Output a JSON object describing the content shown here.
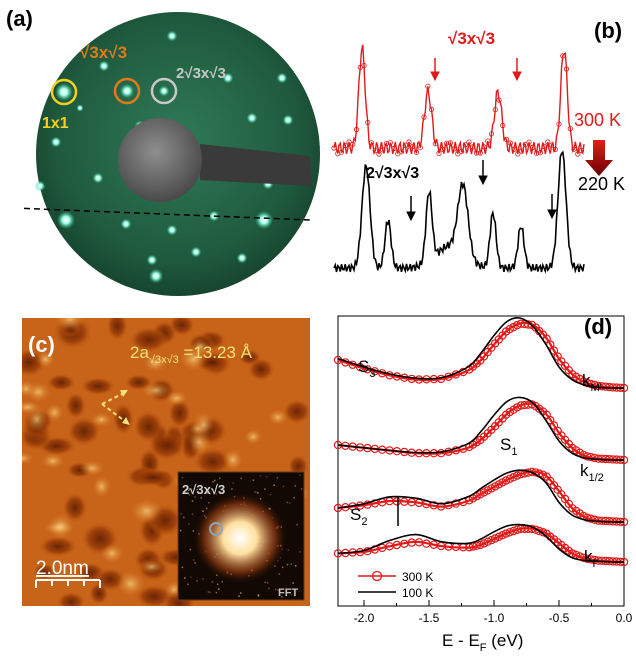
{
  "panel_a": {
    "label": "(a)",
    "spot_labels": [
      "1x1",
      "√3x√3",
      "2√3x√3"
    ],
    "colors": {
      "c1x1": "#f2d21f",
      "root3": "#e07a1a",
      "two_root3": "#c8c8c8",
      "screen": "#1f5a3e"
    }
  },
  "panel_b": {
    "label": "(b)",
    "red_label": "√3x√3",
    "black_label": "2√3x√3",
    "temp_high": "300 K",
    "temp_low": "220 K",
    "colors": {
      "hot": "#e11a1a",
      "cold": "#000000"
    }
  },
  "panel_c": {
    "label": "(c)",
    "lattice_prefix": "2a",
    "lattice_sub": "√3x√3",
    "lattice_value": " =13.23 Å",
    "scalebar": "2.0nm",
    "inset_title": "2√3x√3",
    "inset_label": "FFT"
  },
  "panel_d": {
    "label": "(d)",
    "xlabel_main": "E - E",
    "xlabel_sub": "F",
    "xlabel_unit": " (eV)",
    "peaks": [
      {
        "main": "S",
        "sub": "3"
      },
      {
        "main": "S",
        "sub": "1"
      },
      {
        "main": "S",
        "sub": "2"
      }
    ],
    "curve_labels": [
      {
        "main": "k",
        "sub": "M'"
      },
      {
        "main": "k",
        "sub": "1/2"
      },
      {
        "main": "k",
        "sub": "Γ"
      }
    ],
    "legend": [
      "300 K",
      "100 K"
    ],
    "colors": {
      "t300": "#e11a1a",
      "t100": "#000000"
    }
  },
  "chart_data": [
    {
      "type": "line",
      "panel": "(d)",
      "xlabel": "E - EF (eV)",
      "ylabel": "",
      "xlim": [
        -2.2,
        0.0
      ],
      "xticks": [
        "-2.0",
        "-1.5",
        "-1.0",
        "-0.5",
        "0.0"
      ],
      "x": [
        -2.2,
        -2.0,
        -1.8,
        -1.6,
        -1.4,
        -1.2,
        -1.1,
        -1.0,
        -0.9,
        -0.8,
        -0.7,
        -0.6,
        -0.5,
        -0.4,
        -0.3,
        -0.2,
        -0.1,
        0.0
      ],
      "series": [
        {
          "name": "300 K",
          "curve": "kM'",
          "values": [
            0.4,
            0.28,
            0.18,
            0.12,
            0.13,
            0.25,
            0.4,
            0.62,
            0.82,
            0.92,
            0.9,
            0.72,
            0.42,
            0.2,
            0.08,
            0.03,
            0.01,
            0.0
          ]
        },
        {
          "name": "100 K",
          "curve": "kM'",
          "values": [
            0.42,
            0.3,
            0.2,
            0.14,
            0.15,
            0.3,
            0.5,
            0.75,
            0.95,
            1.0,
            0.88,
            0.62,
            0.3,
            0.12,
            0.04,
            0.01,
            0.0,
            0.0
          ]
        },
        {
          "name": "300 K",
          "curve": "middle",
          "values": [
            0.22,
            0.18,
            0.14,
            0.1,
            0.1,
            0.18,
            0.3,
            0.48,
            0.68,
            0.8,
            0.82,
            0.68,
            0.4,
            0.18,
            0.06,
            0.02,
            0.01,
            0.0
          ]
        },
        {
          "name": "100 K",
          "curve": "middle",
          "values": [
            0.22,
            0.18,
            0.14,
            0.11,
            0.12,
            0.24,
            0.42,
            0.66,
            0.86,
            0.92,
            0.84,
            0.58,
            0.28,
            0.1,
            0.03,
            0.01,
            0.0,
            0.0
          ]
        },
        {
          "name": "300 K",
          "curve": "k1/2",
          "values": [
            0.2,
            0.24,
            0.3,
            0.28,
            0.22,
            0.3,
            0.4,
            0.5,
            0.6,
            0.68,
            0.72,
            0.66,
            0.44,
            0.2,
            0.07,
            0.02,
            0.01,
            0.0
          ]
        },
        {
          "name": "100 K",
          "curve": "k1/2",
          "values": [
            0.2,
            0.26,
            0.36,
            0.34,
            0.26,
            0.36,
            0.48,
            0.6,
            0.7,
            0.74,
            0.7,
            0.56,
            0.28,
            0.1,
            0.03,
            0.01,
            0.0,
            0.0
          ]
        },
        {
          "name": "300 K",
          "curve": "kΓ",
          "values": [
            0.12,
            0.14,
            0.22,
            0.28,
            0.22,
            0.2,
            0.24,
            0.32,
            0.4,
            0.46,
            0.46,
            0.4,
            0.26,
            0.12,
            0.05,
            0.02,
            0.01,
            0.0
          ]
        },
        {
          "name": "100 K",
          "curve": "kΓ",
          "values": [
            0.12,
            0.16,
            0.3,
            0.38,
            0.28,
            0.26,
            0.32,
            0.42,
            0.5,
            0.52,
            0.48,
            0.36,
            0.18,
            0.06,
            0.02,
            0.01,
            0.0,
            0.0
          ]
        }
      ]
    }
  ]
}
